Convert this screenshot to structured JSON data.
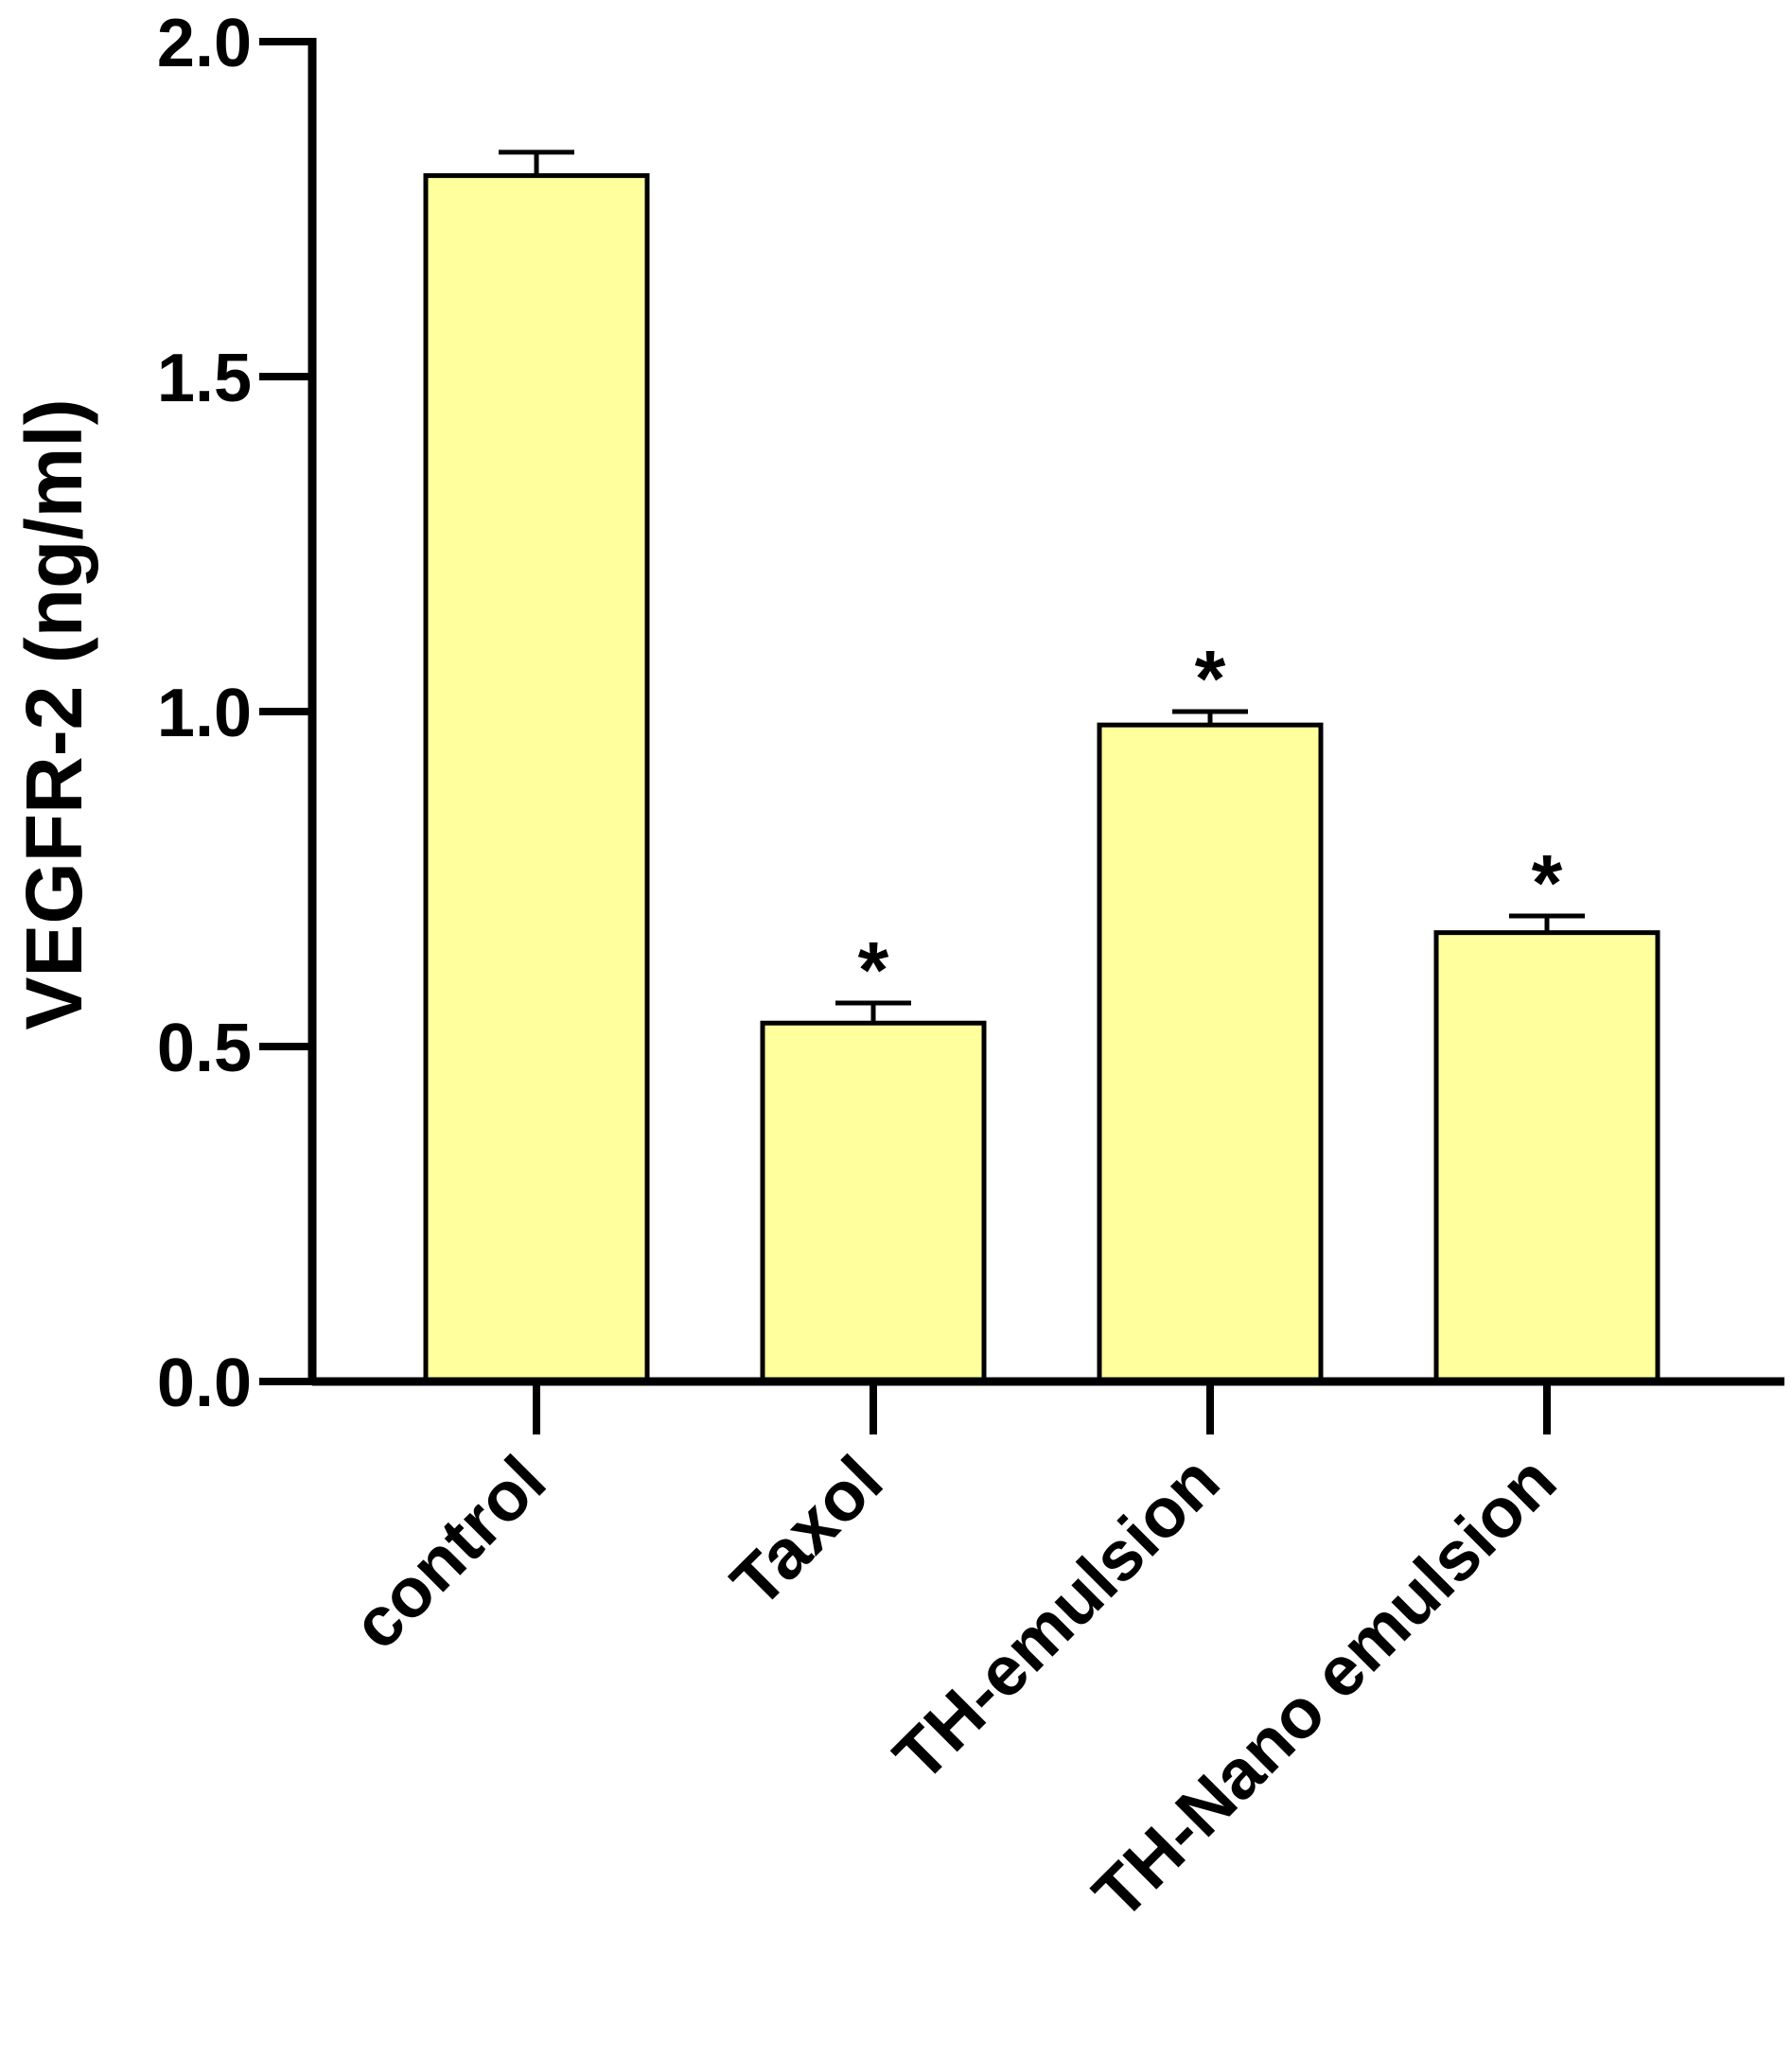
{
  "chart_data": {
    "type": "bar",
    "title": "",
    "xlabel": "",
    "ylabel": "VEGFR-2 (ng/ml)",
    "ylim": [
      0,
      2.0
    ],
    "yticks": [
      "0.0",
      "0.5",
      "1.0",
      "1.5",
      "2.0"
    ],
    "categories": [
      "control",
      "Taxol",
      "TH-emulsion",
      "TH-Nano emulsion"
    ],
    "values": [
      1.8,
      0.535,
      0.98,
      0.67
    ],
    "errors": [
      0.035,
      0.03,
      0.02,
      0.025
    ],
    "annotations": [
      "",
      "*",
      "*",
      "*"
    ],
    "bar_color": "#ffff9e",
    "grid": false,
    "legend": "none"
  }
}
